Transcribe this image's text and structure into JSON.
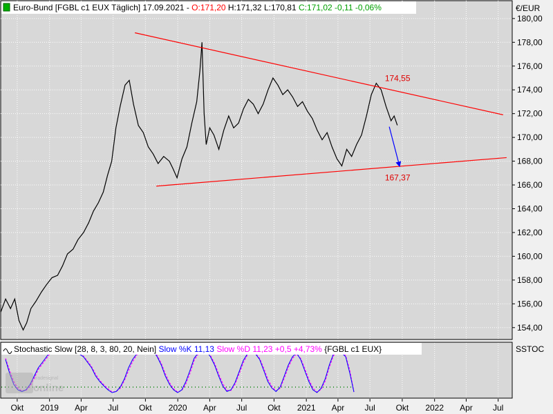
{
  "header": {
    "symbol": "Euro-Bund [FGBL c1 EUX  Täglich] 17.09.2021",
    "open": "O:171,20",
    "high": "H:171,32",
    "low": "L:170,81",
    "close": "C:171,02",
    "change": "-0,11",
    "change_pct": "-0,06%",
    "currency": "€/EUR"
  },
  "indicator": {
    "name": "Stochastic Slow [28, 8, 3, 80, 20, Nein]",
    "k": "Slow %K 11,13",
    "d": "Slow %D 11,23 +0,5 +4,73%",
    "symbol": "{FGBL c1 EUX}",
    "axis_label": "SSTOC"
  },
  "watermark": "tradesignal online",
  "colors": {
    "price": "#000000",
    "trendline": "#ff0000",
    "arrow": "#0000ff",
    "k_line": "#0000ff",
    "d_line": "#ff00ff",
    "open_text": "#ff0000",
    "high_text": "#000000",
    "close_text": "#00a000",
    "panel_bg": "#d8d8d8",
    "window_bg": "#f0f0f0"
  },
  "chart_data": {
    "type": "line",
    "title": "Euro-Bund [FGBL c1 EUX  Täglich] 17.09.2021",
    "y_unit": "€/EUR",
    "ylim": [
      153,
      181.5
    ],
    "xlim": [
      "2018-08-15",
      "2022-08-10"
    ],
    "y_ticks": [
      "154,00",
      "156,00",
      "158,00",
      "160,00",
      "162,00",
      "164,00",
      "166,00",
      "168,00",
      "170,00",
      "172,00",
      "174,00",
      "176,00",
      "178,00",
      "180,00"
    ],
    "x_ticks": [
      {
        "date": "2018-10-01",
        "label": "Okt"
      },
      {
        "date": "2019-01-01",
        "label": "2019"
      },
      {
        "date": "2019-04-01",
        "label": "Apr"
      },
      {
        "date": "2019-07-01",
        "label": "Jul"
      },
      {
        "date": "2019-10-01",
        "label": "Okt"
      },
      {
        "date": "2020-01-01",
        "label": "2020"
      },
      {
        "date": "2020-04-01",
        "label": "Apr"
      },
      {
        "date": "2020-07-01",
        "label": "Jul"
      },
      {
        "date": "2020-10-01",
        "label": "Okt"
      },
      {
        "date": "2021-01-01",
        "label": "2021"
      },
      {
        "date": "2021-04-01",
        "label": "Apr"
      },
      {
        "date": "2021-07-01",
        "label": "Jul"
      },
      {
        "date": "2021-10-01",
        "label": "Okt"
      },
      {
        "date": "2022-01-01",
        "label": "2022"
      },
      {
        "date": "2022-04-01",
        "label": "Apr"
      },
      {
        "date": "2022-07-01",
        "label": "Jul"
      }
    ],
    "grid": true,
    "series": [
      {
        "type": "line",
        "x": [
          "2018-08-15",
          "2018-08-29",
          "2018-09-12",
          "2018-09-24",
          "2018-10-06",
          "2018-10-18",
          "2018-10-28",
          "2018-11-09",
          "2018-11-23",
          "2018-12-09",
          "2018-12-23",
          "2019-01-08",
          "2019-01-24",
          "2019-02-07",
          "2019-02-21",
          "2019-03-09",
          "2019-03-23",
          "2019-04-08",
          "2019-04-22",
          "2019-05-06",
          "2019-05-20",
          "2019-06-03",
          "2019-06-15",
          "2019-06-27",
          "2019-07-09",
          "2019-07-21",
          "2019-08-04",
          "2019-08-16",
          "2019-08-28",
          "2019-09-11",
          "2019-09-25",
          "2019-10-09",
          "2019-10-23",
          "2019-11-06",
          "2019-11-22",
          "2019-12-08",
          "2019-12-18",
          "2019-12-30",
          "2020-01-13",
          "2020-01-27",
          "2020-02-10",
          "2020-02-24",
          "2020-03-04",
          "2020-03-10",
          "2020-03-16",
          "2020-03-22",
          "2020-04-01",
          "2020-04-13",
          "2020-04-27",
          "2020-05-11",
          "2020-05-25",
          "2020-06-08",
          "2020-06-22",
          "2020-07-06",
          "2020-07-20",
          "2020-08-03",
          "2020-08-17",
          "2020-08-31",
          "2020-09-14",
          "2020-09-28",
          "2020-10-12",
          "2020-10-26",
          "2020-11-09",
          "2020-11-23",
          "2020-12-07",
          "2020-12-21",
          "2021-01-04",
          "2021-01-18",
          "2021-02-01",
          "2021-02-15",
          "2021-03-01",
          "2021-03-15",
          "2021-03-29",
          "2021-04-12",
          "2021-04-26",
          "2021-05-10",
          "2021-05-24",
          "2021-06-07",
          "2021-06-21",
          "2021-07-05",
          "2021-07-19",
          "2021-08-02",
          "2021-08-16",
          "2021-08-30",
          "2021-09-08",
          "2021-09-17"
        ],
        "y": [
          155.3,
          156.4,
          155.6,
          156.4,
          154.6,
          153.8,
          154.4,
          155.6,
          156.2,
          157.0,
          157.6,
          158.2,
          158.4,
          159.2,
          160.2,
          160.6,
          161.4,
          162.0,
          162.8,
          163.8,
          164.5,
          165.4,
          166.8,
          168.0,
          170.8,
          172.6,
          174.4,
          174.8,
          172.8,
          171.0,
          170.4,
          169.2,
          168.6,
          167.8,
          168.4,
          168.0,
          167.4,
          166.6,
          168.2,
          169.2,
          171.2,
          173.0,
          175.6,
          178.0,
          172.0,
          169.4,
          170.8,
          170.2,
          169.0,
          170.6,
          171.8,
          170.8,
          171.2,
          172.4,
          173.2,
          172.8,
          172.0,
          172.8,
          174.0,
          175.0,
          174.4,
          173.6,
          174.0,
          173.4,
          172.6,
          173.0,
          172.2,
          171.6,
          170.6,
          169.8,
          170.4,
          169.2,
          168.2,
          167.6,
          169.0,
          168.4,
          169.4,
          170.2,
          171.8,
          173.6,
          174.55,
          174.0,
          172.6,
          171.4,
          171.8,
          171.02
        ]
      },
      {
        "type": "trendline",
        "x": [
          "2019-09-01",
          "2022-07-15"
        ],
        "y": [
          178.8,
          171.9
        ]
      },
      {
        "type": "trendline",
        "x": [
          "2019-11-01",
          "2022-07-25"
        ],
        "y": [
          165.9,
          168.3
        ]
      },
      {
        "type": "arrow",
        "x": [
          "2021-08-25",
          "2021-09-24"
        ],
        "y": [
          170.9,
          167.5
        ]
      }
    ],
    "annotations": [
      {
        "text": "174,55",
        "x": "2021-07-20",
        "y": 174.55
      },
      {
        "text": "167,37",
        "x": "2021-07-20",
        "y": 167.37
      }
    ],
    "stochastic": {
      "ylim": [
        0,
        100
      ],
      "levels": [
        80,
        20
      ],
      "k": [
        70,
        45,
        25,
        15,
        12,
        15,
        25,
        40,
        55,
        65,
        75,
        85,
        88,
        90,
        80,
        85,
        88,
        90,
        80,
        75,
        65,
        55,
        40,
        30,
        22,
        15,
        10,
        12,
        20,
        35,
        55,
        70,
        80,
        85,
        88,
        90,
        86,
        75,
        60,
        40,
        25,
        15,
        10,
        15,
        30,
        50,
        72,
        82,
        86,
        85,
        75,
        60,
        40,
        22,
        12,
        15,
        28,
        48,
        68,
        80,
        86,
        80,
        70,
        50,
        30,
        18,
        12,
        20,
        40,
        60,
        75,
        82,
        70,
        50,
        30,
        15,
        10,
        18,
        35,
        60,
        80,
        85,
        82,
        75,
        45,
        11.13
      ],
      "d": [
        72,
        50,
        30,
        18,
        13,
        14,
        22,
        36,
        52,
        62,
        72,
        82,
        87,
        89,
        82,
        84,
        87,
        89,
        82,
        76,
        67,
        57,
        43,
        32,
        24,
        17,
        11,
        12,
        18,
        32,
        50,
        66,
        78,
        84,
        87,
        89,
        87,
        77,
        63,
        44,
        28,
        17,
        11,
        14,
        26,
        45,
        68,
        80,
        85,
        85,
        77,
        63,
        44,
        26,
        14,
        14,
        25,
        44,
        64,
        78,
        85,
        81,
        72,
        54,
        34,
        21,
        13,
        18,
        36,
        56,
        72,
        80,
        72,
        54,
        34,
        18,
        11,
        16,
        31,
        56,
        77,
        84,
        83,
        77,
        50,
        11.23
      ]
    }
  }
}
